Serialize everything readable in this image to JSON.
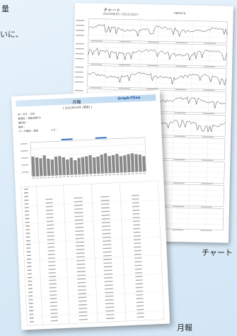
{
  "intro": {
    "line1": "量",
    "line2": "いに、"
  },
  "chart_sheet": {
    "title": "チャート",
    "range": "2012/08/03～2012/10/27",
    "code": "HM0074",
    "caption": "チャート"
  },
  "monthly_sheet": {
    "title": "月報",
    "logo": "Graph-Tline",
    "subtitle": "[ 2012年10月 (温度) ]",
    "meta": [
      "ID : 001 - 200",
      "管理名 : 温度湿度74",
      "場所名 :",
      "備考 :",
      "データ種別 : 温度　　　　　メモ :"
    ],
    "caption": "月報"
  }
}
